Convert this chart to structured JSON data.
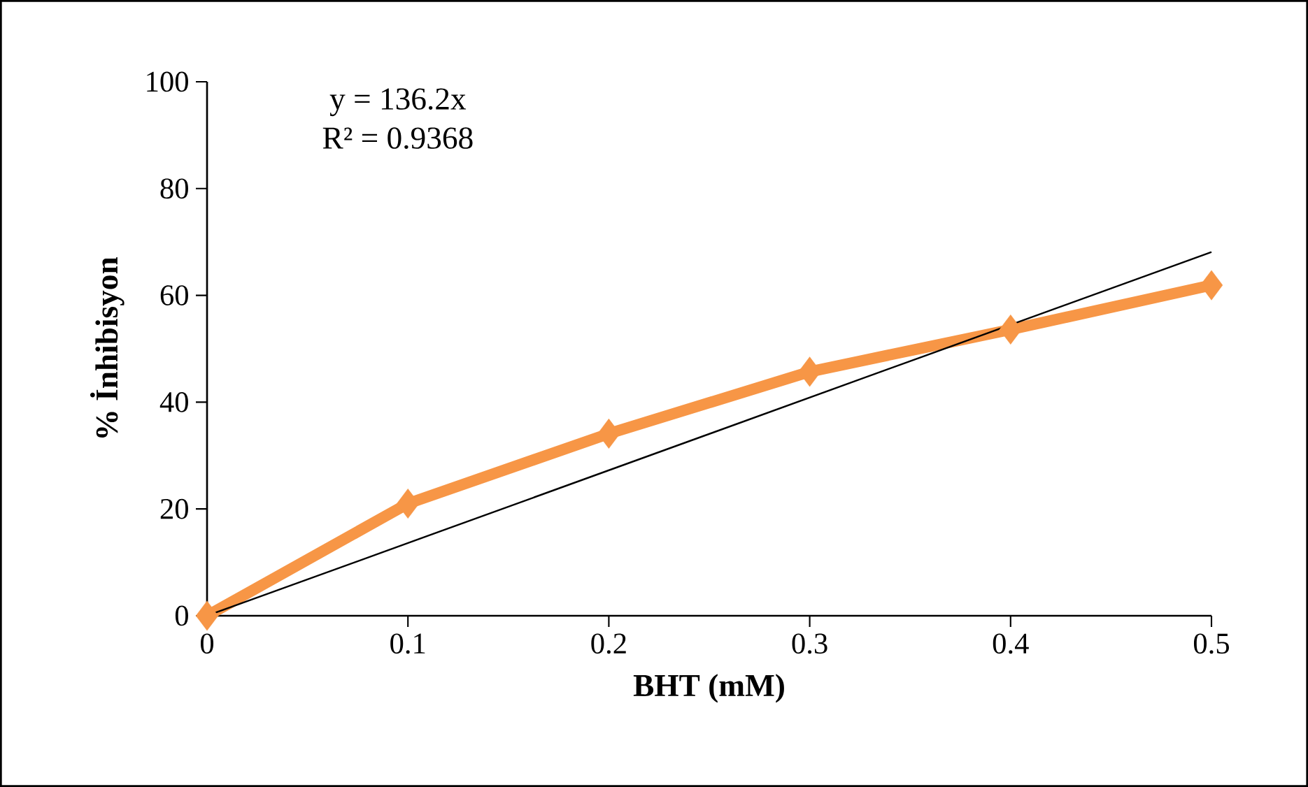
{
  "chart_data": {
    "type": "line",
    "xlabel": "BHT (mM)",
    "ylabel": "% İnhibisyon",
    "annotations": [
      "y = 136.2x",
      "R² = 0.9368"
    ],
    "x": [
      0,
      0.1,
      0.2,
      0.3,
      0.4,
      0.5
    ],
    "series": [
      {
        "color": "#f79646",
        "marker": "diamond",
        "values": [
          0,
          21,
          34.1,
          45.7,
          53.6,
          61.9
        ]
      },
      {
        "type": "line",
        "color": "#000000",
        "marker": "none",
        "x": [
          0,
          0.5
        ],
        "values": [
          0,
          68.1
        ]
      }
    ],
    "xlim": [
      0,
      0.5
    ],
    "ylim": [
      0,
      100
    ],
    "xticks": [
      0,
      0.1,
      0.2,
      0.3,
      0.4,
      0.5
    ],
    "yticks": [
      0,
      20,
      40,
      60,
      80,
      100
    ]
  }
}
